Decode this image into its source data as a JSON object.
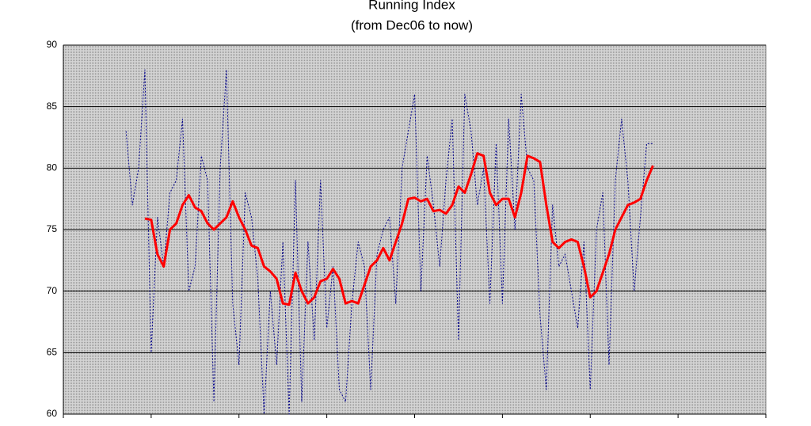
{
  "chart_data": {
    "type": "line",
    "title": "Running Index",
    "subtitle": "(from Dec06 to now)",
    "x": [
      10,
      11,
      12,
      13,
      14,
      15,
      16,
      17,
      18,
      19,
      20,
      21,
      22,
      23,
      24,
      25,
      26,
      27,
      28,
      29,
      30,
      31,
      32,
      33,
      34,
      35,
      36,
      37,
      38,
      39,
      40,
      41,
      42,
      43,
      44,
      45,
      46,
      47,
      48,
      49,
      50,
      51,
      52,
      53,
      54,
      55,
      56,
      57,
      58,
      59,
      60,
      61,
      62,
      63,
      64,
      65,
      66,
      67,
      68,
      69,
      70,
      71,
      72,
      73,
      74,
      75,
      76,
      77,
      78,
      79,
      80,
      81,
      82,
      83,
      84,
      85,
      86,
      87,
      88,
      89,
      90,
      91,
      92,
      93,
      94
    ],
    "series": [
      {
        "color": "#00008b",
        "dashed": true,
        "values": [
          83,
          77,
          80,
          88,
          65,
          76,
          72,
          78,
          79,
          84,
          70,
          72,
          81,
          79,
          61,
          80,
          88,
          69,
          64,
          78,
          76,
          71,
          60,
          70,
          64,
          74,
          60,
          79,
          61,
          74,
          66,
          79,
          67,
          72,
          62,
          61,
          69,
          74,
          72,
          62,
          73,
          75,
          76,
          69,
          80,
          83,
          86,
          70,
          81,
          77,
          72,
          79,
          84,
          66,
          86,
          83,
          77,
          80,
          69,
          82,
          69,
          84,
          75,
          86,
          80,
          79,
          68,
          62,
          77,
          72,
          73,
          70,
          67,
          74,
          62,
          75,
          78,
          64,
          79,
          84,
          79,
          70,
          76,
          82,
          82
        ]
      },
      {
        "color": "#ff0000",
        "dashed": false,
        "values": [
          null,
          null,
          null,
          75.9,
          75.8,
          73,
          72,
          75,
          75.5,
          77,
          77.8,
          76.8,
          76.5,
          75.5,
          75,
          75.5,
          76,
          77.3,
          76,
          75,
          73.7,
          73.5,
          72,
          71.6,
          71,
          69,
          68.9,
          71.5,
          70,
          69,
          69.5,
          70.8,
          71,
          71.8,
          71,
          69,
          69.2,
          69,
          70.5,
          72,
          72.5,
          73.5,
          72.5,
          74,
          75.5,
          77.5,
          77.6,
          77.3,
          77.5,
          76.5,
          76.6,
          76.3,
          77,
          78.5,
          78,
          79.5,
          81.2,
          81,
          78,
          77,
          77.5,
          77.5,
          76,
          78,
          81,
          80.8,
          80.5,
          77,
          74,
          73.5,
          74,
          74.2,
          74,
          72,
          69.5,
          70,
          71.5,
          73,
          75,
          76,
          77,
          77.2,
          77.5,
          79,
          80.2
        ]
      }
    ],
    "xlim": [
      0,
      112
    ],
    "xticks": [
      0,
      14,
      28,
      42,
      56,
      70,
      84,
      98,
      112
    ],
    "ylim": [
      60,
      90
    ],
    "yticks": [
      60,
      65,
      70,
      75,
      80,
      85,
      90
    ],
    "grid": true
  }
}
